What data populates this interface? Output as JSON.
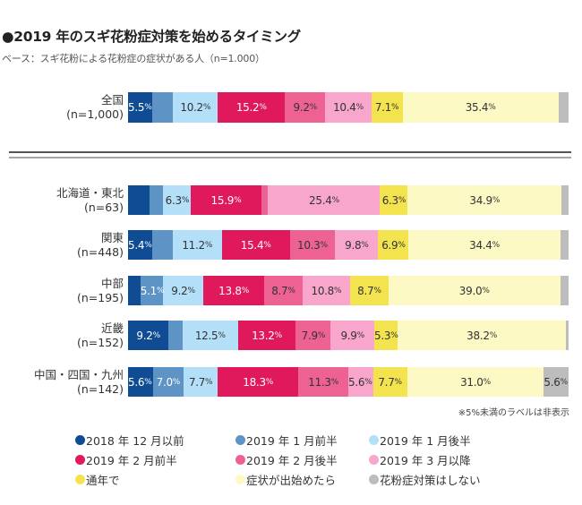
{
  "title": "●2019 年のスギ花粉症対策を始めるタイミング",
  "subtitle": "ベース：スギ花粉による花粉症の症状がある人（n=1.000）",
  "note": "※5%未満のラベルは非表示",
  "chart_data": {
    "type": "bar",
    "orientation": "horizontal-stacked-100",
    "title": "2019 年のスギ花粉症対策を始めるタイミング",
    "subtitle": "ベース：スギ花粉による花粉症の症状がある人（n=1.000）",
    "label_threshold_percent": 5,
    "series": [
      {
        "name": "2018 年 12 月以前",
        "color": "#0f4c93"
      },
      {
        "name": "2019 年 1 月前半",
        "color": "#5e93c6"
      },
      {
        "name": "2019 年 1 月後半",
        "color": "#b3dff8"
      },
      {
        "name": "2019 年 2 月前半",
        "color": "#e0185c"
      },
      {
        "name": "2019 年 2 月後半",
        "color": "#ee6293"
      },
      {
        "name": "2019 年 3 月以降",
        "color": "#f8a6cc"
      },
      {
        "name": "通年で",
        "color": "#f3e44f"
      },
      {
        "name": "症状が出始めたら",
        "color": "#fdf9c4"
      },
      {
        "name": "花粉症対策はしない",
        "color": "#bdbdbd"
      }
    ],
    "categories": [
      {
        "name": "全国",
        "n": "(n=1,000)",
        "group": "national",
        "values": [
          5.5,
          4.7,
          10.2,
          15.2,
          9.2,
          10.4,
          7.1,
          35.4,
          2.3
        ]
      },
      {
        "name": "北海道・東北",
        "n": "(n=63)",
        "group": "regional",
        "values": [
          4.8,
          3.2,
          6.3,
          15.9,
          1.6,
          25.4,
          6.3,
          34.9,
          1.6
        ]
      },
      {
        "name": "関東",
        "n": "(n=448)",
        "group": "regional",
        "values": [
          5.4,
          4.7,
          11.2,
          15.4,
          10.3,
          9.8,
          6.9,
          34.4,
          1.9
        ]
      },
      {
        "name": "中部",
        "n": "(n=195)",
        "group": "regional",
        "values": [
          2.8,
          5.1,
          9.2,
          13.8,
          8.7,
          10.8,
          8.7,
          39.0,
          1.9
        ]
      },
      {
        "name": "近畿",
        "n": "(n=152)",
        "group": "regional",
        "values": [
          9.2,
          3.2,
          12.5,
          13.2,
          7.9,
          9.9,
          5.3,
          38.2,
          0.6
        ]
      },
      {
        "name": "中国・四国・九州",
        "n": "(n=142)",
        "group": "regional",
        "values": [
          5.6,
          7.0,
          7.7,
          18.3,
          11.3,
          5.6,
          7.7,
          31.0,
          5.6
        ]
      }
    ],
    "xlim": [
      0,
      100
    ],
    "unit": "%",
    "legend_position": "bottom",
    "grid": false
  }
}
